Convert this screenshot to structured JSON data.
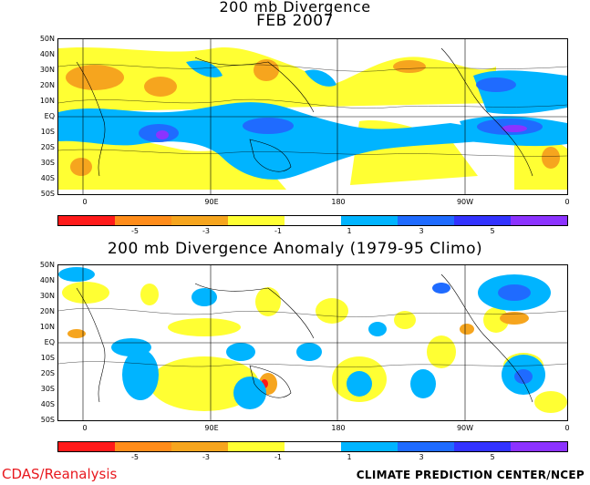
{
  "titles": {
    "top_line1": "200 mb Divergence",
    "top_line2": "FEB 2007",
    "bottom": "200 mb Divergence Anomaly (1979-95 Climo)"
  },
  "latitude_labels": [
    "50N",
    "40N",
    "30N",
    "20N",
    "10N",
    "EQ",
    "10S",
    "20S",
    "30S",
    "40S",
    "50S"
  ],
  "longitude_labels": [
    "0",
    "90E",
    "180",
    "90W",
    "0"
  ],
  "colorbar": {
    "colors": [
      "#ff1a1a",
      "#ff8c1a",
      "#f6a51e",
      "#ffff33",
      "#ffffff",
      "#00b4ff",
      "#1f6bff",
      "#3333ff",
      "#8c33ff"
    ],
    "tick_labels": [
      "-5",
      "-3",
      "-1",
      "1",
      "3",
      "5"
    ]
  },
  "footer": {
    "left": "CDAS/Reanalysis",
    "right": "CLIMATE PREDICTION CENTER/NCEP"
  },
  "colors": {
    "neg_strong": "#ff1a1a",
    "neg_mid": "#ff8c1a",
    "neg_light": "#ffff33",
    "pos_light": "#00b4ff",
    "pos_mid": "#1f6bff",
    "pos_strong": "#8c33ff",
    "credit": "#e8181e"
  }
}
